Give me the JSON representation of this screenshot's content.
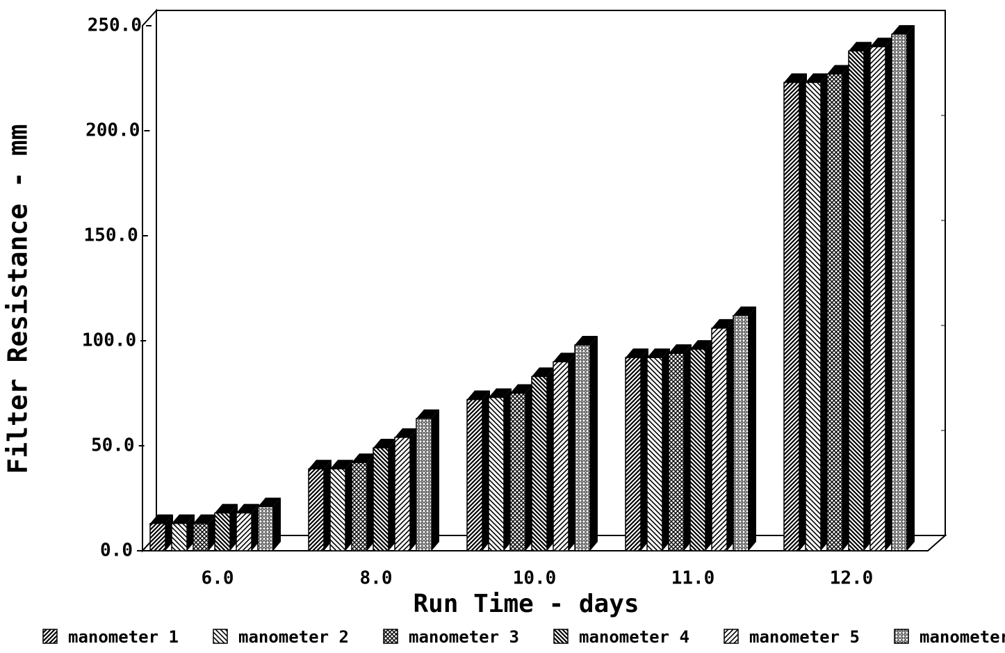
{
  "chart_data": {
    "type": "bar3d",
    "x_label": "Run Time - days",
    "y_label": "Filter Resistance - mm",
    "categories": [
      "6.0",
      "8.0",
      "10.0",
      "11.0",
      "12.0"
    ],
    "series": [
      {
        "name": "manometer 1",
        "color": "#000000",
        "values": [
          13,
          39,
          72,
          92,
          223
        ]
      },
      {
        "name": "manometer 2",
        "color": "#000000",
        "values": [
          13,
          39,
          73,
          92,
          223
        ]
      },
      {
        "name": "manometer 3",
        "color": "#000000",
        "values": [
          13,
          42,
          75,
          94,
          227
        ]
      },
      {
        "name": "manometer 4",
        "color": "#000000",
        "values": [
          18,
          49,
          83,
          96,
          238
        ]
      },
      {
        "name": "manometer 5",
        "color": "#000000",
        "values": [
          18,
          54,
          90,
          106,
          240
        ]
      },
      {
        "name": "manometer",
        "color": "#000000",
        "values": [
          21,
          63,
          98,
          112,
          246
        ]
      }
    ],
    "ylim": [
      0,
      250
    ],
    "yticks": [
      {
        "value": 0,
        "label": "0.0"
      },
      {
        "value": 50,
        "label": "50.0"
      },
      {
        "value": 100,
        "label": "100.0"
      },
      {
        "value": 150,
        "label": "150.0"
      },
      {
        "value": 200,
        "label": "200.0"
      },
      {
        "value": 250,
        "label": "250.0"
      }
    ]
  }
}
